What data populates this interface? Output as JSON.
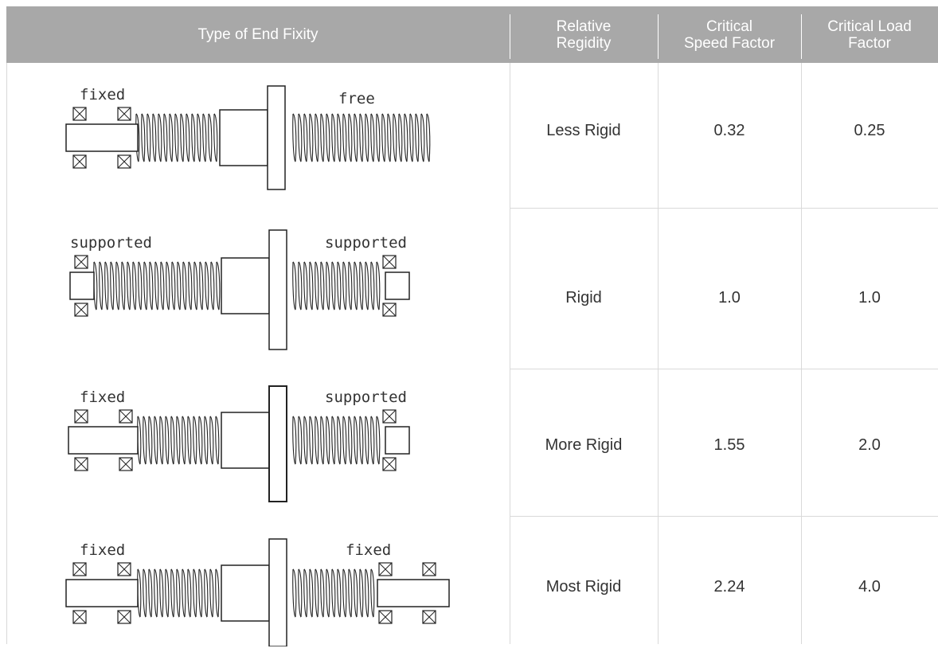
{
  "table": {
    "headers": [
      {
        "key": "type",
        "text": "Type of End Fixity"
      },
      {
        "key": "regidity",
        "text": "Relative\nRegidity"
      },
      {
        "key": "speed",
        "text": "Critical\nSpeed Factor"
      },
      {
        "key": "load",
        "text": "Critical Load\nFactor"
      }
    ],
    "rows": [
      {
        "left_label": "fixed",
        "right_label": "free",
        "rigidity": "Less Rigid",
        "speed_factor": "0.32",
        "load_factor": "0.25"
      },
      {
        "left_label": "supported",
        "right_label": "supported",
        "rigidity": "Rigid",
        "speed_factor": "1.0",
        "load_factor": "1.0"
      },
      {
        "left_label": "fixed",
        "right_label": "supported",
        "rigidity": "More Rigid",
        "speed_factor": "1.55",
        "load_factor": "2.0"
      },
      {
        "left_label": "fixed",
        "right_label": "fixed",
        "rigidity": "Most Rigid",
        "speed_factor": "2.24",
        "load_factor": "4.0"
      }
    ]
  },
  "colors": {
    "header_bg": "#a8a8a8",
    "header_text": "#ffffff",
    "body_text": "#333333",
    "rule": "#d9d9d9",
    "drawing": "#222222"
  },
  "icons": {
    "bearing": "bearing-cross-box-icon",
    "screw": "threaded-screw-icon",
    "nut": "ball-nut-flange-icon"
  }
}
